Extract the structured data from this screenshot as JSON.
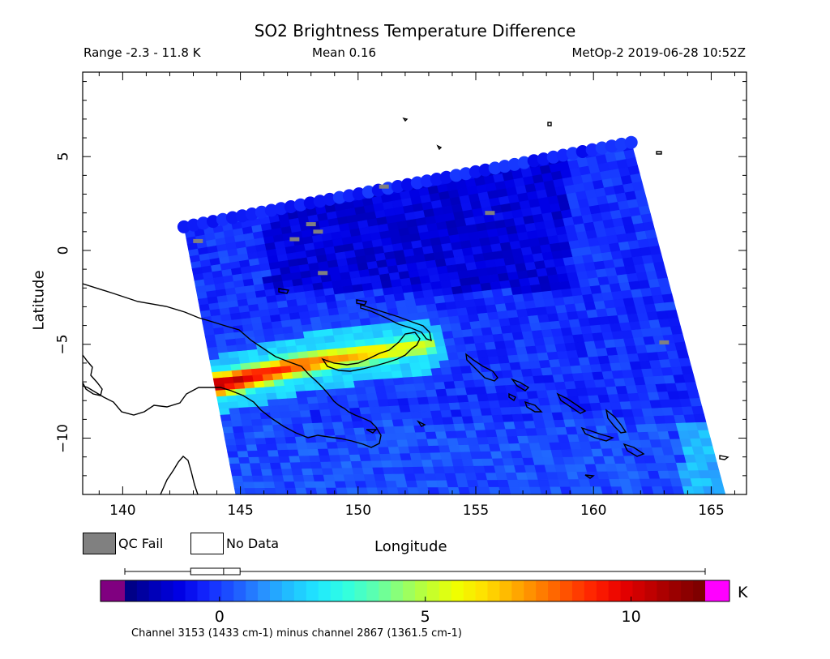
{
  "header": {
    "title": "SO2 Brightness Temperature Difference",
    "range": "Range -2.3 - 11.8 K",
    "mean": "Mean 0.16",
    "satellite": "MetOp-2 2019-06-28 10:52Z"
  },
  "map": {
    "x_label": "Longitude",
    "y_label": "Latitude",
    "lon_range": [
      138.3,
      166.5
    ],
    "lat_range": [
      -13.0,
      9.5
    ],
    "lon_ticks": [
      "140",
      "145",
      "150",
      "155",
      "160",
      "165"
    ],
    "lat_ticks": [
      "5",
      "0",
      "-5",
      "-10"
    ],
    "swath_corners_lonlat": [
      [
        142.6,
        1.3
      ],
      [
        161.6,
        5.8
      ],
      [
        165.6,
        -13.0
      ],
      [
        144.8,
        -13.0
      ]
    ],
    "qc_fail_pixels_lonlat": [
      [
        143.2,
        0.5
      ],
      [
        147.3,
        0.6
      ],
      [
        148.0,
        1.4
      ],
      [
        148.3,
        1.0
      ],
      [
        148.5,
        -1.2
      ],
      [
        151.1,
        3.4
      ],
      [
        155.6,
        2.0
      ],
      [
        163.0,
        -4.9
      ]
    ],
    "plume_axis_lonlat": [
      [
        144.0,
        -7.2
      ],
      [
        146.0,
        -6.6
      ],
      [
        148.0,
        -6.0
      ],
      [
        150.5,
        -5.5
      ],
      [
        153.0,
        -5.1
      ]
    ]
  },
  "legend": {
    "qc_fail": "QC Fail",
    "no_data": "No Data",
    "qc_color": "#808080"
  },
  "colorbar": {
    "min": -2.3,
    "max": 11.8,
    "unit": "K",
    "tick_labels": [
      "0",
      "5",
      "10"
    ],
    "tick_values": [
      0,
      5,
      10
    ],
    "under_color": "#800080",
    "over_color": "#ff00ff",
    "colors": [
      "#00007a",
      "#0000b4",
      "#0000e6",
      "#1428ff",
      "#1e5aff",
      "#2890ff",
      "#20c0ff",
      "#20e8ff",
      "#30ffe0",
      "#5affb0",
      "#90ff70",
      "#c0ff30",
      "#f0ff00",
      "#ffe000",
      "#ffb000",
      "#ff8000",
      "#ff5000",
      "#ff2000",
      "#e80000",
      "#c00000",
      "#960000",
      "#780000"
    ],
    "box_stats": {
      "whisker_low": -2.3,
      "q1": -0.7,
      "median": 0.1,
      "q3": 0.5,
      "whisker_high": 11.8
    },
    "footer": "Channel 3153 (1433 cm-1) minus channel 2867 (1361.5 cm-1)"
  }
}
